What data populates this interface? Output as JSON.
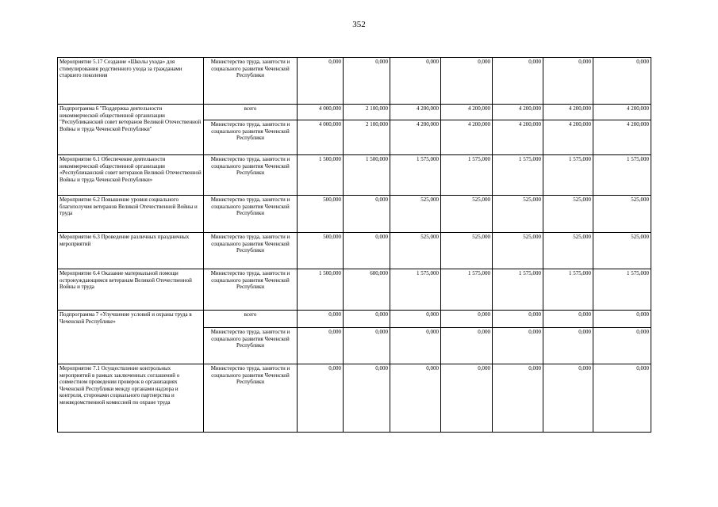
{
  "page_number": "352",
  "table": {
    "groups": [
      {
        "label": "Мероприятие 5.17 Создание «Школы ухода» для стимулирования родственного ухода за гражданами старшего поколения",
        "lines": [
          {
            "executor": "Министерство труда, занятости и социального развития Чеченской Республики",
            "values": [
              "0,000",
              "0,000",
              "0,000",
              "0,000",
              "0,000",
              "0,000",
              "0,000"
            ]
          }
        ]
      },
      {
        "label": "Подпрограмма 6 \"Поддержка деятельности некоммерческой общественной организации \"Республиканский совет ветеранов Великой Отечественной Войны и труда Чеченской Республики\"",
        "lines": [
          {
            "executor": "всего",
            "values": [
              "4 000,000",
              "2 100,000",
              "4 200,000",
              "4 200,000",
              "4 200,000",
              "4 200,000",
              "4 200,000"
            ]
          },
          {
            "executor": "Министерство труда, занятости и социального развития Чеченской Республики",
            "values": [
              "4 000,000",
              "2 100,000",
              "4 200,000",
              "4 200,000",
              "4 200,000",
              "4 200,000",
              "4 200,000"
            ]
          }
        ]
      },
      {
        "label": "Мероприятие 6.1 Обеспечение деятельности некоммерческой общественной организации «Республиканский совет ветеранов Великой Отечественной Войны и труда Чеченской Республики»",
        "lines": [
          {
            "executor": "Министерство труда, занятости и социального развития Чеченской Республики",
            "values": [
              "1 500,000",
              "1 500,000",
              "1 575,000",
              "1 575,000",
              "1 575,000",
              "1 575,000",
              "1 575,000"
            ]
          }
        ]
      },
      {
        "label": "Мероприятие 6.2 Повышение уровня социального благополучия ветеранов Великой Отечественной Войны и труда",
        "lines": [
          {
            "executor": "Министерство труда, занятости и социального развития Чеченской Республики",
            "values": [
              "500,000",
              "0,000",
              "525,000",
              "525,000",
              "525,000",
              "525,000",
              "525,000"
            ]
          }
        ]
      },
      {
        "label": "Мероприятие 6.3 Проведение различных праздничных мероприятий",
        "lines": [
          {
            "executor": "Министерство труда, занятости и социального развития Чеченской Республики",
            "values": [
              "500,000",
              "0,000",
              "525,000",
              "525,000",
              "525,000",
              "525,000",
              "525,000"
            ]
          }
        ]
      },
      {
        "label": "Мероприятие 6.4 Оказание материальной помощи остронуждающимся ветеранам Великой Отечественной Войны и труда",
        "lines": [
          {
            "executor": "Министерство труда, занятости и социального развития Чеченской Республики",
            "values": [
              "1 500,000",
              "600,000",
              "1 575,000",
              "1 575,000",
              "1 575,000",
              "1 575,000",
              "1 575,000"
            ]
          }
        ]
      },
      {
        "label": "Подпрограмма 7 «Улучшение условий и охраны труда в Чеченской Республике»",
        "lines": [
          {
            "executor": "всего",
            "values": [
              "0,000",
              "0,000",
              "0,000",
              "0,000",
              "0,000",
              "0,000",
              "0,000"
            ]
          },
          {
            "executor": "Министерство труда, занятости и социального развития Чеченской Республики",
            "values": [
              "0,000",
              "0,000",
              "0,000",
              "0,000",
              "0,000",
              "0,000",
              "0,000"
            ]
          }
        ]
      },
      {
        "label": "Мероприятие 7.1 Осуществление контрольных мероприятий в рамках заключенных соглашений о совместном проведении проверок в организациях Чеченской Республики между органами надзора и контроля, сторонами социального партнерства и межведомственной комиссией по охране труда",
        "lines": [
          {
            "executor": "Министерство труда, занятости и социального развития Чеченской Республики",
            "values": [
              "0,000",
              "0,000",
              "0,000",
              "0,000",
              "0,000",
              "0,000",
              "0,000"
            ]
          }
        ]
      }
    ]
  }
}
